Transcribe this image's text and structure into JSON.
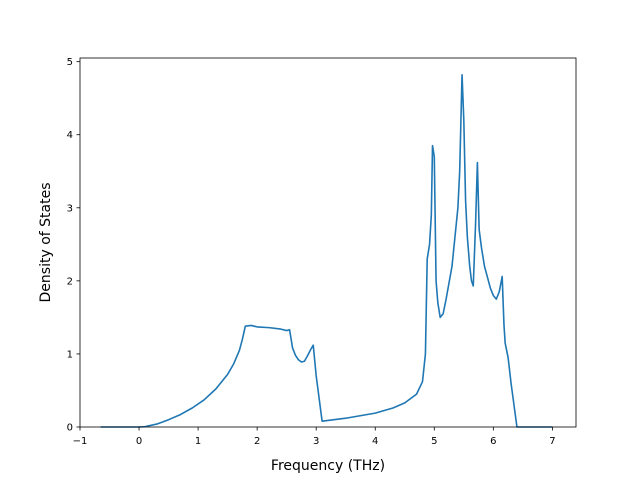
{
  "chart_data": {
    "type": "line",
    "title": "",
    "xlabel": "Frequency (THz)",
    "ylabel": "Density of States",
    "xlim": [
      -1,
      7.4
    ],
    "ylim": [
      0,
      5.05
    ],
    "xticks": [
      -1,
      0,
      1,
      2,
      3,
      4,
      5,
      6,
      7
    ],
    "yticks": [
      0,
      1,
      2,
      3,
      4,
      5
    ],
    "grid": false,
    "legend": "none",
    "series": [
      {
        "color": "#1f77b4",
        "x": [
          -0.65,
          -0.3,
          0,
          0.1,
          0.3,
          0.5,
          0.7,
          0.9,
          1.1,
          1.3,
          1.5,
          1.6,
          1.7,
          1.75,
          1.8,
          1.9,
          2.0,
          2.2,
          2.4,
          2.5,
          2.55,
          2.6,
          2.65,
          2.7,
          2.75,
          2.8,
          2.85,
          2.9,
          2.95,
          3.0,
          3.1,
          3.2,
          3.5,
          4.0,
          4.3,
          4.5,
          4.7,
          4.8,
          4.85,
          4.88,
          4.92,
          4.95,
          4.97,
          5.0,
          5.03,
          5.06,
          5.1,
          5.15,
          5.2,
          5.3,
          5.4,
          5.43,
          5.47,
          5.5,
          5.53,
          5.56,
          5.6,
          5.63,
          5.66,
          5.7,
          5.73,
          5.76,
          5.8,
          5.85,
          5.9,
          5.95,
          6.0,
          6.05,
          6.1,
          6.15,
          6.18,
          6.2,
          6.25,
          6.3,
          6.35,
          6.4,
          6.5,
          7.0
        ],
        "values": [
          0,
          0,
          0,
          0.005,
          0.04,
          0.1,
          0.17,
          0.26,
          0.37,
          0.52,
          0.72,
          0.86,
          1.05,
          1.2,
          1.38,
          1.39,
          1.37,
          1.36,
          1.34,
          1.32,
          1.33,
          1.08,
          0.98,
          0.92,
          0.89,
          0.9,
          0.97,
          1.05,
          1.12,
          0.7,
          0.08,
          0.09,
          0.12,
          0.19,
          0.26,
          0.33,
          0.45,
          0.62,
          1.0,
          2.3,
          2.5,
          2.9,
          3.85,
          3.7,
          2.0,
          1.7,
          1.5,
          1.55,
          1.75,
          2.2,
          3.0,
          3.5,
          4.82,
          4.2,
          3.1,
          2.6,
          2.2,
          2.0,
          1.93,
          2.8,
          3.62,
          2.7,
          2.45,
          2.2,
          2.05,
          1.9,
          1.8,
          1.75,
          1.85,
          2.06,
          1.4,
          1.15,
          0.95,
          0.6,
          0.3,
          0,
          0,
          0
        ]
      }
    ]
  }
}
